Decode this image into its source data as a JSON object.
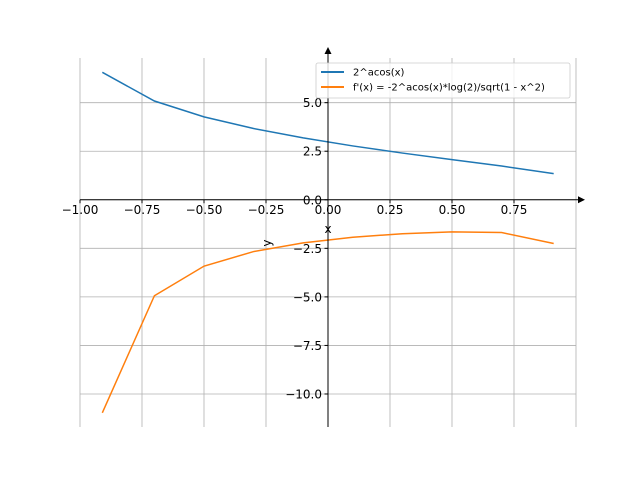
{
  "chart_data": {
    "type": "line",
    "title": "",
    "xlabel": "x",
    "ylabel": "y",
    "xlim": [
      -1.0,
      1.0
    ],
    "ylim": [
      -11.7,
      7.3
    ],
    "grid": true,
    "legend_position": "top-right",
    "x_ticks": [
      -1.0,
      -0.75,
      -0.5,
      -0.25,
      0.0,
      0.25,
      0.5,
      0.75
    ],
    "x_tick_labels": [
      "−1.00",
      "−0.75",
      "−0.50",
      "−0.25",
      "0.00",
      "0.25",
      "0.50",
      "0.75"
    ],
    "x_grid": [
      -1.0,
      -0.75,
      -0.5,
      -0.25,
      0.0,
      0.25,
      0.5,
      0.75,
      1.0
    ],
    "y_ticks": [
      5.0,
      2.5,
      0.0,
      -2.5,
      -5.0,
      -7.5,
      -10.0
    ],
    "y_tick_labels": [
      "5.0",
      "2.5",
      "0.0",
      "−2.5",
      "−5.0",
      "−7.5",
      "−10.0"
    ],
    "x": [
      -0.91,
      -0.7,
      -0.5,
      -0.3,
      -0.1,
      0.1,
      0.3,
      0.5,
      0.7,
      0.91
    ],
    "series": [
      {
        "name": "2^acos(x)",
        "color": "#1f77b4",
        "values": [
          6.562,
          5.085,
          4.27,
          3.669,
          3.185,
          2.772,
          2.405,
          2.066,
          1.738,
          1.345
        ]
      },
      {
        "name": "f'(x) = -2^acos(x)*log(2)/sqrt(1 - x^2)",
        "color": "#ff7f0e",
        "values": [
          -10.97,
          -4.94,
          -3.418,
          -2.666,
          -2.219,
          -1.931,
          -1.747,
          -1.654,
          -1.687,
          -2.25
        ]
      }
    ]
  }
}
